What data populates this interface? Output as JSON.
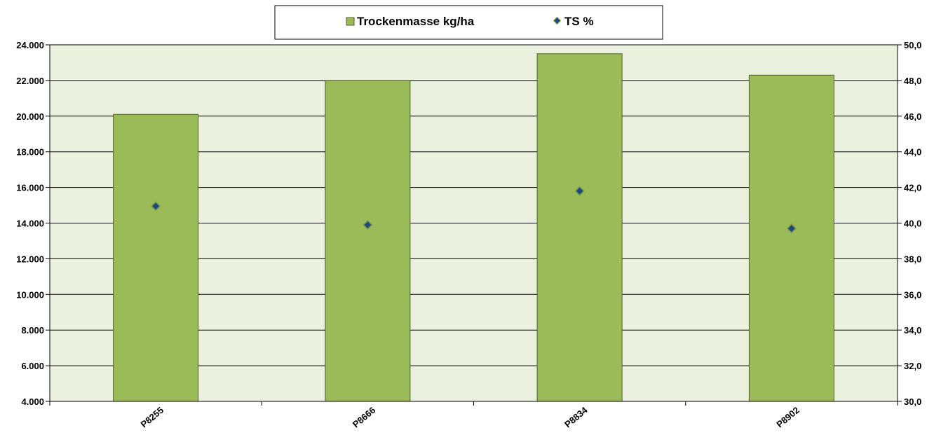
{
  "chart_data": {
    "type": "bar",
    "categories": [
      "P8255",
      "P8666",
      "P8834",
      "P8902"
    ],
    "series": [
      {
        "name": "Trockenmasse kg/ha",
        "type": "bar",
        "axis": "left",
        "color": "#9bbb59",
        "values": [
          20100,
          22000,
          23500,
          22300
        ]
      },
      {
        "name": "TS %",
        "type": "scatter",
        "axis": "right",
        "color": "#1f497d",
        "values": [
          40.95,
          39.9,
          41.8,
          39.7
        ]
      }
    ],
    "y_left": {
      "min": 4000,
      "max": 24000,
      "step": 2000,
      "tick_labels": [
        "4.000",
        "6.000",
        "8.000",
        "10.000",
        "12.000",
        "14.000",
        "16.000",
        "18.000",
        "20.000",
        "22.000",
        "24.000"
      ]
    },
    "y_right": {
      "min": 30,
      "max": 50,
      "step": 2,
      "tick_labels": [
        "30,0",
        "32,0",
        "34,0",
        "36,0",
        "38,0",
        "40,0",
        "42,0",
        "44,0",
        "46,0",
        "48,0",
        "50,0"
      ]
    },
    "grid": true,
    "legend_position": "top-center",
    "plot_background": "#ebf1de",
    "bar_border_color": "#4f6228",
    "marker_border_color": "#7a9a4a"
  }
}
